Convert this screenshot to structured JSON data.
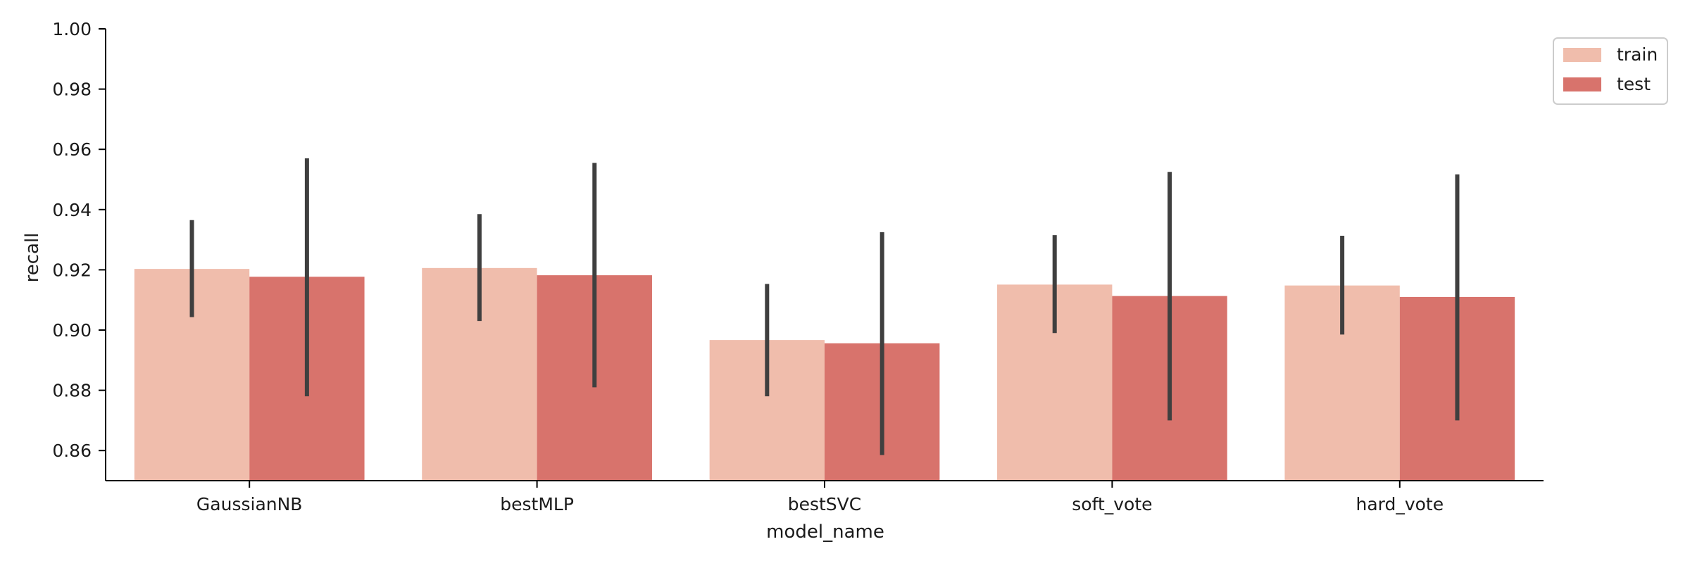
{
  "chart_data": {
    "type": "bar",
    "title": "",
    "xlabel": "model_name",
    "ylabel": "recall",
    "ylim": [
      0.85,
      1.0
    ],
    "yticks": [
      "0.86",
      "0.88",
      "0.90",
      "0.92",
      "0.94",
      "0.96",
      "0.98",
      "1.00"
    ],
    "categories": [
      "GaussianNB",
      "bestMLP",
      "bestSVC",
      "soft_vote",
      "hard_vote"
    ],
    "series": [
      {
        "name": "train",
        "color": "#f0bdac",
        "values": [
          0.9203,
          0.9206,
          0.8967,
          0.9151,
          0.9148
        ],
        "error_low": [
          0.9043,
          0.903,
          0.878,
          0.899,
          0.8985
        ],
        "error_high": [
          0.9365,
          0.9385,
          0.9153,
          0.9315,
          0.9313
        ]
      },
      {
        "name": "test",
        "color": "#d8736c",
        "values": [
          0.9177,
          0.9182,
          0.8956,
          0.9113,
          0.911
        ],
        "error_low": [
          0.878,
          0.881,
          0.8585,
          0.87,
          0.87
        ],
        "error_high": [
          0.957,
          0.9555,
          0.9325,
          0.9525,
          0.9517
        ]
      }
    ],
    "error_bar_color": "#3f3f3f",
    "grid": false,
    "legend_position": "top-right-outside"
  }
}
